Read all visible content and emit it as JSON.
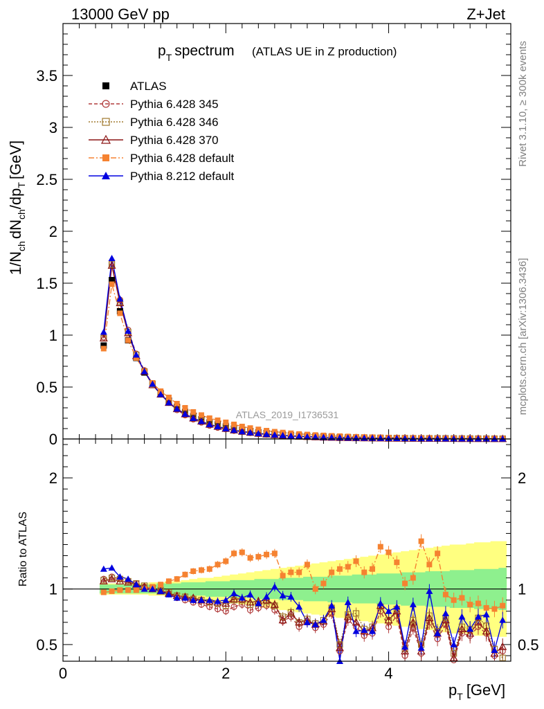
{
  "header": {
    "left": "13000 GeV pp",
    "right": "Z+Jet"
  },
  "side_labels": {
    "rivet": "Rivet 3.1.10, ≥ 300k events",
    "mcplots": "mcplots.cern.ch [arXiv:1306.3436]"
  },
  "watermark": "ATLAS_2019_I1736531",
  "colors": {
    "atlas": "#000000",
    "p345": "#b03a3a",
    "p346": "#a0782d",
    "p370": "#8b1414",
    "p6def": "#f58231",
    "p8def": "#0000e0",
    "band_inner": "#8ef08e",
    "band_outer": "#ffff80"
  },
  "chart_data": [
    {
      "type": "line",
      "panel": "main",
      "title_main": "p",
      "title_sub": "T",
      "title_word": "spectrum",
      "subtitle": "(ATLAS UE in Z production)",
      "ylabel": "1/N_ch dN_ch/dp_T [GeV]",
      "xlabel": "",
      "xlim": [
        0,
        5.5
      ],
      "ylim": [
        0,
        4.0
      ],
      "yticks": [
        "0",
        "0.5",
        "1",
        "1.5",
        "2",
        "2.5",
        "3",
        "3.5"
      ],
      "x": [
        0.5,
        0.6,
        0.7,
        0.8,
        0.9,
        1.0,
        1.1,
        1.2,
        1.3,
        1.4,
        1.5,
        1.6,
        1.7,
        1.8,
        1.9,
        2.0,
        2.1,
        2.2,
        2.3,
        2.4,
        2.5,
        2.6,
        2.7,
        2.8,
        2.9,
        3.0,
        3.1,
        3.2,
        3.3,
        3.4,
        3.5,
        3.6,
        3.7,
        3.8,
        3.9,
        4.0,
        4.1,
        4.2,
        4.3,
        4.4,
        4.5,
        4.6,
        4.7,
        4.8,
        4.9,
        5.0,
        5.1,
        5.2,
        5.3,
        5.4
      ],
      "series": [
        {
          "name": "ATLAS",
          "key": "atlas",
          "values": [
            0.9,
            1.53,
            1.23,
            0.95,
            0.78,
            0.64,
            0.53,
            0.44,
            0.37,
            0.31,
            0.26,
            0.22,
            0.19,
            0.16,
            0.14,
            0.12,
            0.1,
            0.085,
            0.073,
            0.063,
            0.055,
            0.048,
            0.042,
            0.037,
            0.032,
            0.028,
            0.025,
            0.022,
            0.02,
            0.018,
            0.016,
            0.014,
            0.013,
            0.012,
            0.011,
            0.01,
            0.009,
            0.008,
            0.0075,
            0.007,
            0.0065,
            0.006,
            0.0055,
            0.005,
            0.0047,
            0.0044,
            0.0041,
            0.0038,
            0.0035,
            0.0033
          ]
        },
        {
          "name": "Pythia 6.428 345",
          "key": "p345",
          "values": [
            0.98,
            1.7,
            1.34,
            1.05,
            0.82,
            0.66,
            0.53,
            0.43,
            0.35,
            0.28,
            0.23,
            0.19,
            0.16,
            0.13,
            0.11,
            0.095,
            0.08,
            0.068,
            0.058,
            0.05,
            0.043,
            0.037,
            0.032,
            0.028,
            0.024,
            0.021,
            0.018,
            0.016,
            0.014,
            0.012,
            0.011,
            0.01,
            0.009,
            0.008,
            0.007,
            0.006,
            0.0055,
            0.005,
            0.0045,
            0.004,
            0.0037,
            0.0034,
            0.0031,
            0.0028,
            0.0026,
            0.0024,
            0.0022,
            0.002,
            0.0018,
            0.0016
          ]
        },
        {
          "name": "Pythia 6.428 346",
          "key": "p346",
          "values": [
            0.97,
            1.68,
            1.32,
            1.03,
            0.81,
            0.65,
            0.53,
            0.43,
            0.35,
            0.29,
            0.24,
            0.2,
            0.17,
            0.14,
            0.12,
            0.1,
            0.085,
            0.072,
            0.062,
            0.053,
            0.046,
            0.04,
            0.034,
            0.03,
            0.026,
            0.022,
            0.019,
            0.017,
            0.015,
            0.013,
            0.012,
            0.011,
            0.01,
            0.009,
            0.008,
            0.007,
            0.0065,
            0.006,
            0.0055,
            0.005,
            0.0046,
            0.0042,
            0.0038,
            0.0034,
            0.0031,
            0.0028,
            0.0025,
            0.0022,
            0.002,
            0.0018
          ]
        },
        {
          "name": "Pythia 6.428 370",
          "key": "p370",
          "values": [
            0.97,
            1.67,
            1.31,
            1.02,
            0.8,
            0.65,
            0.52,
            0.43,
            0.35,
            0.29,
            0.24,
            0.2,
            0.17,
            0.14,
            0.12,
            0.1,
            0.085,
            0.072,
            0.062,
            0.053,
            0.046,
            0.04,
            0.034,
            0.029,
            0.025,
            0.022,
            0.019,
            0.016,
            0.014,
            0.012,
            0.011,
            0.01,
            0.009,
            0.008,
            0.007,
            0.006,
            0.0056,
            0.0052,
            0.0048,
            0.0044,
            0.004,
            0.0036,
            0.0032,
            0.0029,
            0.0026,
            0.0024,
            0.0022,
            0.002,
            0.0018,
            0.0016
          ]
        },
        {
          "name": "Pythia 6.428 default",
          "key": "p6def",
          "values": [
            0.87,
            1.49,
            1.21,
            0.95,
            0.78,
            0.65,
            0.54,
            0.46,
            0.4,
            0.34,
            0.3,
            0.26,
            0.23,
            0.2,
            0.18,
            0.16,
            0.14,
            0.12,
            0.105,
            0.092,
            0.08,
            0.07,
            0.062,
            0.055,
            0.048,
            0.043,
            0.038,
            0.034,
            0.03,
            0.027,
            0.024,
            0.021,
            0.019,
            0.017,
            0.015,
            0.013,
            0.012,
            0.011,
            0.01,
            0.009,
            0.0082,
            0.0074,
            0.0066,
            0.0058,
            0.0051,
            0.0045,
            0.004,
            0.0036,
            0.0032,
            0.0029
          ]
        },
        {
          "name": "Pythia 8.212 default",
          "key": "p8def",
          "values": [
            1.03,
            1.74,
            1.35,
            1.04,
            0.81,
            0.65,
            0.53,
            0.43,
            0.35,
            0.29,
            0.24,
            0.2,
            0.17,
            0.14,
            0.12,
            0.1,
            0.085,
            0.072,
            0.062,
            0.053,
            0.046,
            0.04,
            0.035,
            0.03,
            0.026,
            0.022,
            0.019,
            0.017,
            0.015,
            0.013,
            0.012,
            0.011,
            0.01,
            0.009,
            0.008,
            0.007,
            0.0065,
            0.006,
            0.0055,
            0.005,
            0.0045,
            0.0041,
            0.0037,
            0.0034,
            0.0031,
            0.0028,
            0.0025,
            0.0022,
            0.002,
            0.0018
          ]
        }
      ]
    },
    {
      "type": "line",
      "panel": "ratio",
      "title": "",
      "ylabel": "Ratio to ATLAS",
      "xlabel": "p_T [GeV]",
      "xlim": [
        0,
        5.5
      ],
      "ylim": [
        0.35,
        2.35
      ],
      "yticks": [
        "0.5",
        "1",
        "2"
      ],
      "xticks": [
        "0",
        "2",
        "4"
      ],
      "x": [
        0.5,
        0.6,
        0.7,
        0.8,
        0.9,
        1.0,
        1.1,
        1.2,
        1.3,
        1.4,
        1.5,
        1.6,
        1.7,
        1.8,
        1.9,
        2.0,
        2.1,
        2.2,
        2.3,
        2.4,
        2.5,
        2.6,
        2.7,
        2.8,
        2.9,
        3.0,
        3.1,
        3.2,
        3.3,
        3.4,
        3.5,
        3.6,
        3.7,
        3.8,
        3.9,
        4.0,
        4.1,
        4.2,
        4.3,
        4.4,
        4.5,
        4.6,
        4.7,
        4.8,
        4.9,
        5.0,
        5.1,
        5.2,
        5.3,
        5.4
      ],
      "band_inner_upper": [
        1.04,
        1.04,
        1.04,
        1.04,
        1.04,
        1.04,
        1.04,
        1.05,
        1.05,
        1.05,
        1.06,
        1.06,
        1.06,
        1.07,
        1.07,
        1.07,
        1.08,
        1.08,
        1.08,
        1.09,
        1.09,
        1.09,
        1.1,
        1.1,
        1.1,
        1.11,
        1.11,
        1.11,
        1.12,
        1.12,
        1.12,
        1.13,
        1.13,
        1.13,
        1.14,
        1.14,
        1.14,
        1.15,
        1.15,
        1.15,
        1.16,
        1.16,
        1.16,
        1.17,
        1.17,
        1.17,
        1.18,
        1.18,
        1.18,
        1.19
      ],
      "band_inner_lower": [
        0.96,
        0.96,
        0.96,
        0.96,
        0.96,
        0.96,
        0.96,
        0.95,
        0.95,
        0.95,
        0.94,
        0.94,
        0.94,
        0.93,
        0.93,
        0.93,
        0.92,
        0.92,
        0.92,
        0.91,
        0.91,
        0.91,
        0.9,
        0.9,
        0.9,
        0.89,
        0.89,
        0.89,
        0.88,
        0.88,
        0.88,
        0.87,
        0.87,
        0.87,
        0.86,
        0.86,
        0.86,
        0.85,
        0.85,
        0.85,
        0.84,
        0.84,
        0.84,
        0.83,
        0.83,
        0.83,
        0.82,
        0.82,
        0.82,
        0.81
      ],
      "band_outer_upper": [
        1.05,
        1.05,
        1.05,
        1.05,
        1.05,
        1.05,
        1.06,
        1.06,
        1.07,
        1.07,
        1.08,
        1.09,
        1.1,
        1.1,
        1.11,
        1.12,
        1.13,
        1.14,
        1.15,
        1.16,
        1.17,
        1.18,
        1.19,
        1.2,
        1.21,
        1.22,
        1.23,
        1.24,
        1.25,
        1.26,
        1.27,
        1.28,
        1.29,
        1.3,
        1.31,
        1.32,
        1.33,
        1.34,
        1.35,
        1.36,
        1.37,
        1.38,
        1.39,
        1.4,
        1.4,
        1.41,
        1.42,
        1.42,
        1.43,
        1.43
      ],
      "band_outer_lower": [
        0.95,
        0.95,
        0.95,
        0.95,
        0.95,
        0.95,
        0.94,
        0.94,
        0.93,
        0.93,
        0.92,
        0.91,
        0.9,
        0.9,
        0.89,
        0.88,
        0.87,
        0.86,
        0.85,
        0.84,
        0.83,
        0.82,
        0.81,
        0.8,
        0.79,
        0.78,
        0.77,
        0.76,
        0.75,
        0.74,
        0.73,
        0.72,
        0.71,
        0.7,
        0.69,
        0.68,
        0.67,
        0.66,
        0.65,
        0.64,
        0.63,
        0.62,
        0.61,
        0.6,
        0.6,
        0.59,
        0.58,
        0.58,
        0.57,
        0.57
      ],
      "series": [
        {
          "name": "Pythia 6.428 345",
          "key": "p345",
          "values": [
            1.09,
            1.11,
            1.09,
            1.07,
            1.05,
            1.02,
            1.0,
            0.99,
            0.96,
            0.92,
            0.9,
            0.88,
            0.86,
            0.84,
            0.82,
            0.8,
            0.84,
            0.86,
            0.81,
            0.83,
            0.85,
            0.81,
            0.71,
            0.75,
            0.66,
            0.7,
            0.65,
            0.68,
            0.78,
            0.44,
            0.72,
            0.66,
            0.58,
            0.6,
            0.8,
            0.66,
            0.76,
            0.4,
            0.65,
            0.42,
            0.7,
            0.55,
            0.68,
            0.36,
            0.6,
            0.58,
            0.66,
            0.6,
            0.4,
            0.44
          ]
        },
        {
          "name": "Pythia 6.428 346",
          "key": "p346",
          "values": [
            1.08,
            1.1,
            1.09,
            1.07,
            1.05,
            1.03,
            1.01,
            0.99,
            0.97,
            0.94,
            0.93,
            0.91,
            0.9,
            0.88,
            0.87,
            0.85,
            0.9,
            0.9,
            0.86,
            0.87,
            0.89,
            0.85,
            0.75,
            0.79,
            0.7,
            0.73,
            0.69,
            0.72,
            0.83,
            0.5,
            0.77,
            0.78,
            0.64,
            0.66,
            0.84,
            0.72,
            0.82,
            0.46,
            0.72,
            0.5,
            0.76,
            0.62,
            0.74,
            0.42,
            0.66,
            0.64,
            0.74,
            0.67,
            0.46,
            0.38
          ]
        },
        {
          "name": "Pythia 6.428 370",
          "key": "p370",
          "values": [
            1.07,
            1.09,
            1.07,
            1.06,
            1.04,
            1.02,
            1.0,
            0.98,
            0.96,
            0.94,
            0.93,
            0.92,
            0.9,
            0.89,
            0.88,
            0.87,
            0.91,
            0.91,
            0.88,
            0.89,
            0.9,
            0.86,
            0.72,
            0.78,
            0.7,
            0.72,
            0.68,
            0.71,
            0.82,
            0.47,
            0.75,
            0.7,
            0.62,
            0.65,
            0.85,
            0.72,
            0.8,
            0.44,
            0.7,
            0.44,
            0.74,
            0.6,
            0.72,
            0.38,
            0.64,
            0.6,
            0.7,
            0.62,
            0.42,
            0.48
          ]
        },
        {
          "name": "Pythia 6.428 default",
          "key": "p6def",
          "values": [
            0.97,
            0.98,
            0.99,
            0.99,
            0.99,
            1.0,
            1.02,
            1.04,
            1.07,
            1.09,
            1.13,
            1.16,
            1.17,
            1.18,
            1.22,
            1.25,
            1.32,
            1.33,
            1.28,
            1.29,
            1.31,
            1.32,
            1.12,
            1.15,
            1.15,
            1.22,
            1.0,
            1.05,
            1.15,
            1.18,
            1.2,
            1.25,
            1.15,
            1.18,
            1.38,
            1.33,
            1.24,
            1.05,
            1.1,
            1.43,
            1.22,
            1.32,
            0.95,
            0.9,
            0.92,
            0.86,
            0.87,
            0.83,
            0.82,
            0.85
          ]
        },
        {
          "name": "Pythia 8.212 default",
          "key": "p8def",
          "values": [
            1.18,
            1.19,
            1.11,
            1.09,
            1.04,
            1.0,
            1.0,
            0.98,
            0.95,
            0.92,
            0.92,
            0.9,
            0.9,
            0.9,
            0.89,
            0.9,
            0.96,
            0.92,
            0.95,
            0.87,
            0.93,
            1.02,
            0.94,
            0.93,
            0.84,
            0.7,
            0.68,
            0.72,
            0.85,
            0.35,
            0.88,
            0.62,
            0.63,
            0.62,
            0.87,
            0.8,
            0.84,
            0.48,
            0.86,
            0.47,
            0.98,
            0.6,
            0.78,
            0.5,
            0.75,
            0.64,
            0.75,
            0.77,
            0.45,
            0.72
          ]
        }
      ]
    }
  ]
}
